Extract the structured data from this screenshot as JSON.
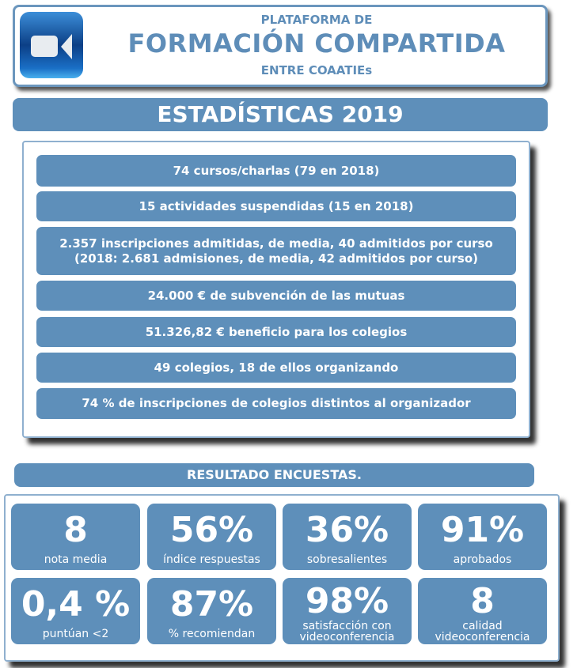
{
  "header": {
    "line1": "PLATAFORMA DE",
    "line2": "FORMACIÓN COMPARTIDA",
    "line3": "ENTRE COAATIEs",
    "icon": "video-camera-icon"
  },
  "stats": {
    "title": "ESTADÍSTICAS 2019",
    "items": [
      "74 cursos/charlas (79 en 2018)",
      "15 actividades suspendidas (15 en 2018)",
      "2.357 inscripciones admitidas, de media, 40 admitidos por curso\n(2018: 2.681 admisiones, de media, 42 admitidos por curso)",
      "24.000 € de subvención de las mutuas",
      "51.326,82 € beneficio para los colegios",
      "49 colegios, 18 de ellos organizando",
      "74 % de inscripciones de colegios distintos al organizador"
    ]
  },
  "surveys": {
    "title": "RESULTADO ENCUESTAS.",
    "tiles": [
      {
        "value": "8",
        "label": "nota media"
      },
      {
        "value": "56%",
        "label": "índice respuestas"
      },
      {
        "value": "36%",
        "label": "sobresalientes"
      },
      {
        "value": "91%",
        "label": "aprobados"
      },
      {
        "value": "0,4 %",
        "label": "puntúan <2"
      },
      {
        "value": "87%",
        "label": "% recomiendan"
      },
      {
        "value": "98%",
        "label": "satisfacción con videoconferencia"
      },
      {
        "value": "8",
        "label": "calidad videoconferencia"
      }
    ]
  },
  "colors": {
    "accent": "#5e8fba",
    "border": "#6b96bd"
  }
}
